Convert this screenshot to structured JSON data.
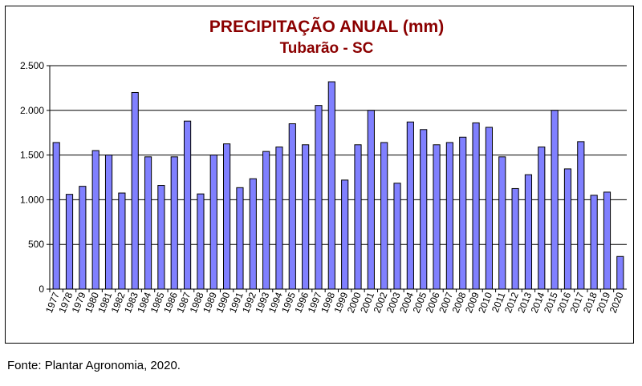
{
  "chart_data": {
    "type": "bar",
    "title": "PRECIPITAÇÃO ANUAL (mm)",
    "subtitle": "Tubarão - SC",
    "xlabel": "",
    "ylabel": "",
    "ylim": [
      0,
      2500
    ],
    "yticks": [
      0,
      500,
      1000,
      1500,
      2000,
      2500
    ],
    "ytick_labels": [
      "0",
      "500",
      "1.000",
      "1.500",
      "2.000",
      "2.500"
    ],
    "grid": "horizontal",
    "legend": "none",
    "categories": [
      "1977",
      "1978",
      "1979",
      "1980",
      "1981",
      "1982",
      "1983",
      "1984",
      "1985",
      "1986",
      "1987",
      "1988",
      "1989",
      "1990",
      "1991",
      "1992",
      "1993",
      "1994",
      "1995",
      "1996",
      "1997",
      "1998",
      "1999",
      "2000",
      "2001",
      "2002",
      "2003",
      "2004",
      "2005",
      "2006",
      "2007",
      "2008",
      "2009",
      "2010",
      "2011",
      "2012",
      "2013",
      "2014",
      "2015",
      "2016",
      "2017",
      "2018",
      "2019",
      "2020"
    ],
    "values": [
      1640,
      1060,
      1150,
      1550,
      1500,
      1075,
      2200,
      1480,
      1160,
      1480,
      1880,
      1065,
      1500,
      1625,
      1135,
      1235,
      1540,
      1590,
      1850,
      1615,
      2055,
      2320,
      1220,
      1615,
      2000,
      1640,
      1185,
      1870,
      1785,
      1615,
      1640,
      1700,
      1860,
      1810,
      1480,
      1125,
      1280,
      1590,
      2000,
      1345,
      1650,
      1050,
      1085,
      365
    ],
    "colors": {
      "bar_fill": "#8080ff",
      "bar_stroke": "#000000",
      "title": "#8b0000"
    }
  },
  "source_text": "Fonte: Plantar Agronomia, 2020."
}
